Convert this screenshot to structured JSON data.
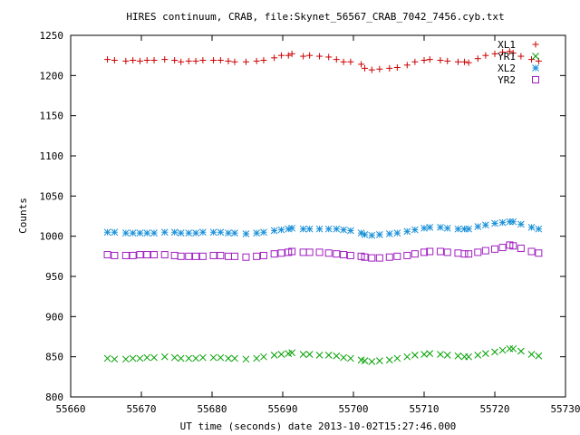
{
  "chart_data": {
    "type": "scatter",
    "title": "HIRES continuum, CRAB, file:Skynet_56567_CRAB_7042_7456.cyb.txt",
    "xlabel": "UT time (seconds) date 2013-10-02T15:27:46.000",
    "ylabel": "Counts",
    "xlim": [
      55660,
      55730
    ],
    "ylim": [
      800,
      1250
    ],
    "xticks": [
      55660,
      55670,
      55680,
      55690,
      55700,
      55710,
      55720,
      55730
    ],
    "yticks": [
      800,
      850,
      900,
      950,
      1000,
      1050,
      1100,
      1150,
      1200,
      1250
    ],
    "legend_position": "top-right",
    "grid": false,
    "x": [
      55665.2,
      55666.2,
      55667.8,
      55668.8,
      55669.8,
      55670.8,
      55671.8,
      55673.3,
      55674.7,
      55675.6,
      55676.7,
      55677.7,
      55678.7,
      55680.2,
      55681.2,
      55682.3,
      55683.2,
      55684.8,
      55686.3,
      55687.3,
      55688.8,
      55689.8,
      55690.8,
      55691.3,
      55692.9,
      55693.8,
      55695.2,
      55696.5,
      55697.6,
      55698.6,
      55699.6,
      55701.1,
      55701.6,
      55702.6,
      55703.7,
      55705.1,
      55706.2,
      55707.6,
      55708.7,
      55710.0,
      55710.8,
      55712.3,
      55713.3,
      55714.8,
      55715.7,
      55716.3,
      55717.6,
      55718.7,
      55720.0,
      55721.1,
      55722.1,
      55722.6,
      55723.7,
      55725.2,
      55726.2
    ],
    "series": [
      {
        "name": "XL1",
        "color": "#cc0000",
        "marker": "plus",
        "values": [
          1220,
          1219,
          1218,
          1219,
          1218,
          1219,
          1219,
          1220,
          1219,
          1217,
          1218,
          1218,
          1219,
          1219,
          1219,
          1218,
          1217,
          1217,
          1218,
          1219,
          1222,
          1225,
          1225,
          1227,
          1224,
          1225,
          1224,
          1223,
          1220,
          1217,
          1217,
          1214,
          1209,
          1207,
          1208,
          1209,
          1210,
          1213,
          1217,
          1219,
          1220,
          1219,
          1218,
          1217,
          1217,
          1216,
          1221,
          1225,
          1227,
          1229,
          1230,
          1228,
          1224,
          1220,
          1218
        ]
      },
      {
        "name": "YR1",
        "color": "#00a000",
        "marker": "cross",
        "values": [
          848,
          847,
          847,
          848,
          848,
          849,
          849,
          850,
          849,
          848,
          848,
          848,
          849,
          849,
          849,
          848,
          848,
          847,
          848,
          850,
          852,
          853,
          854,
          855,
          853,
          853,
          852,
          852,
          851,
          849,
          848,
          846,
          845,
          844,
          845,
          846,
          848,
          850,
          852,
          853,
          854,
          853,
          852,
          851,
          850,
          850,
          852,
          854,
          856,
          858,
          860,
          860,
          857,
          853,
          851
        ]
      },
      {
        "name": "XL2",
        "color": "#1a90d8",
        "marker": "star",
        "values": [
          1005,
          1005,
          1004,
          1004,
          1004,
          1004,
          1004,
          1005,
          1005,
          1004,
          1004,
          1004,
          1005,
          1005,
          1005,
          1004,
          1004,
          1003,
          1004,
          1005,
          1007,
          1008,
          1009,
          1010,
          1009,
          1009,
          1009,
          1009,
          1009,
          1008,
          1007,
          1004,
          1002,
          1001,
          1002,
          1003,
          1004,
          1006,
          1008,
          1010,
          1011,
          1011,
          1010,
          1009,
          1009,
          1009,
          1012,
          1014,
          1016,
          1017,
          1018,
          1018,
          1015,
          1011,
          1009
        ]
      },
      {
        "name": "YR2",
        "color": "#a020c0",
        "marker": "square",
        "values": [
          977,
          976,
          976,
          976,
          977,
          977,
          977,
          977,
          976,
          975,
          975,
          975,
          975,
          976,
          976,
          975,
          975,
          974,
          975,
          976,
          978,
          979,
          980,
          981,
          980,
          980,
          980,
          979,
          978,
          977,
          976,
          975,
          974,
          973,
          973,
          974,
          975,
          976,
          978,
          980,
          981,
          981,
          980,
          979,
          978,
          978,
          980,
          982,
          984,
          986,
          989,
          988,
          985,
          981,
          979
        ]
      }
    ]
  }
}
